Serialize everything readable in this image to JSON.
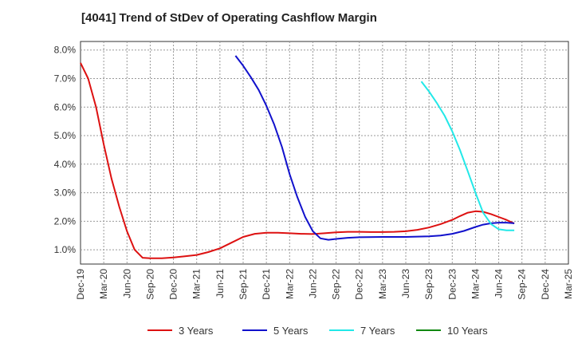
{
  "title": "[4041]  Trend of StDev of Operating Cashflow Margin",
  "chart_data": {
    "type": "line",
    "title": "[4041]  Trend of StDev of Operating Cashflow Margin",
    "xlabel": "",
    "ylabel": "",
    "ylim": [
      0.5,
      8.3
    ],
    "y_ticks": [
      "1.0%",
      "2.0%",
      "3.0%",
      "4.0%",
      "5.0%",
      "6.0%",
      "7.0%",
      "8.0%"
    ],
    "y_tick_values": [
      1,
      2,
      3,
      4,
      5,
      6,
      7,
      8
    ],
    "x_tick_labels": [
      "Dec-19",
      "Mar-20",
      "Jun-20",
      "Sep-20",
      "Dec-20",
      "Mar-21",
      "Jun-21",
      "Sep-21",
      "Dec-21",
      "Mar-22",
      "Jun-22",
      "Sep-22",
      "Dec-22",
      "Mar-23",
      "Jun-23",
      "Sep-23",
      "Dec-23",
      "Mar-24",
      "Jun-24",
      "Sep-24",
      "Dec-24",
      "Mar-25"
    ],
    "grid": true,
    "legend_position": "bottom",
    "series": [
      {
        "name": "3 Years",
        "color": "#dd1111",
        "points": [
          [
            0,
            7.55
          ],
          [
            0.33,
            7.0
          ],
          [
            0.67,
            6.0
          ],
          [
            1,
            4.7
          ],
          [
            1.33,
            3.5
          ],
          [
            1.67,
            2.5
          ],
          [
            2,
            1.65
          ],
          [
            2.33,
            1.0
          ],
          [
            2.67,
            0.72
          ],
          [
            3,
            0.7
          ],
          [
            3.5,
            0.7
          ],
          [
            4,
            0.73
          ],
          [
            4.5,
            0.77
          ],
          [
            5,
            0.82
          ],
          [
            5.5,
            0.92
          ],
          [
            6,
            1.05
          ],
          [
            6.5,
            1.25
          ],
          [
            7,
            1.45
          ],
          [
            7.5,
            1.56
          ],
          [
            8,
            1.6
          ],
          [
            8.5,
            1.6
          ],
          [
            9,
            1.58
          ],
          [
            9.5,
            1.56
          ],
          [
            10,
            1.55
          ],
          [
            10.5,
            1.58
          ],
          [
            11,
            1.61
          ],
          [
            11.5,
            1.63
          ],
          [
            12,
            1.63
          ],
          [
            12.5,
            1.62
          ],
          [
            13,
            1.62
          ],
          [
            13.5,
            1.63
          ],
          [
            14,
            1.65
          ],
          [
            14.5,
            1.7
          ],
          [
            15,
            1.78
          ],
          [
            15.5,
            1.9
          ],
          [
            16,
            2.05
          ],
          [
            16.33,
            2.18
          ],
          [
            16.67,
            2.3
          ],
          [
            17,
            2.35
          ],
          [
            17.33,
            2.33
          ],
          [
            17.67,
            2.25
          ],
          [
            18,
            2.15
          ],
          [
            18.33,
            2.05
          ],
          [
            18.67,
            1.92
          ]
        ]
      },
      {
        "name": "5 Years",
        "color": "#1111cc",
        "points": [
          [
            6.67,
            7.8
          ],
          [
            7,
            7.45
          ],
          [
            7.33,
            7.05
          ],
          [
            7.67,
            6.6
          ],
          [
            8,
            6.05
          ],
          [
            8.33,
            5.4
          ],
          [
            8.67,
            4.6
          ],
          [
            9,
            3.65
          ],
          [
            9.33,
            2.85
          ],
          [
            9.67,
            2.15
          ],
          [
            10,
            1.65
          ],
          [
            10.33,
            1.4
          ],
          [
            10.67,
            1.35
          ],
          [
            11,
            1.38
          ],
          [
            11.5,
            1.42
          ],
          [
            12,
            1.44
          ],
          [
            13,
            1.45
          ],
          [
            14,
            1.45
          ],
          [
            15,
            1.47
          ],
          [
            15.5,
            1.5
          ],
          [
            16,
            1.56
          ],
          [
            16.5,
            1.66
          ],
          [
            17,
            1.8
          ],
          [
            17.33,
            1.88
          ],
          [
            17.67,
            1.93
          ],
          [
            18,
            1.95
          ],
          [
            18.33,
            1.95
          ],
          [
            18.67,
            1.93
          ]
        ]
      },
      {
        "name": "7 Years",
        "color": "#22e8e8",
        "points": [
          [
            14.67,
            6.9
          ],
          [
            15,
            6.55
          ],
          [
            15.33,
            6.15
          ],
          [
            15.67,
            5.7
          ],
          [
            16,
            5.15
          ],
          [
            16.33,
            4.5
          ],
          [
            16.67,
            3.75
          ],
          [
            17,
            3.0
          ],
          [
            17.33,
            2.3
          ],
          [
            17.67,
            1.9
          ],
          [
            18,
            1.72
          ],
          [
            18.33,
            1.68
          ],
          [
            18.67,
            1.68
          ]
        ]
      },
      {
        "name": "10 Years",
        "color": "#118811",
        "points": []
      }
    ]
  }
}
